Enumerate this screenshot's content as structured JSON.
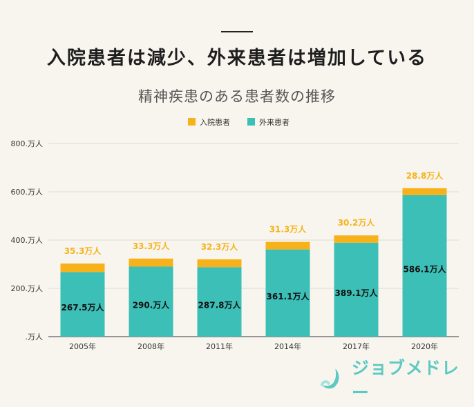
{
  "headline": "入院患者は減少、外来患者は増加している",
  "brand": {
    "name": "ジョブメドレー",
    "color": "#5cc9c2"
  },
  "chart_data": {
    "type": "bar",
    "stacked": true,
    "title": "精神疾患のある患者数の推移",
    "categories": [
      "2005年",
      "2008年",
      "2011年",
      "2014年",
      "2017年",
      "2020年"
    ],
    "series": [
      {
        "name": "外来患者",
        "color": "#3bbfb6",
        "values": [
          267.5,
          290.0,
          287.8,
          361.1,
          389.1,
          586.1
        ],
        "labels": [
          "267.5万人",
          "290.万人",
          "287.8万人",
          "361.1万人",
          "389.1万人",
          "586.1万人"
        ]
      },
      {
        "name": "入院患者",
        "color": "#f7b21b",
        "values": [
          35.3,
          33.3,
          32.3,
          31.3,
          30.2,
          28.8
        ],
        "labels": [
          "35.3万人",
          "33.3万人",
          "32.3万人",
          "31.3万人",
          "30.2万人",
          "28.8万人"
        ]
      }
    ],
    "legend": [
      {
        "name": "入院患者",
        "color": "#f7b21b"
      },
      {
        "name": "外来患者",
        "color": "#3bbfb6"
      }
    ],
    "y_ticks": [
      0,
      200,
      400,
      600,
      800
    ],
    "y_tick_labels": [
      ".万人",
      "200.万人",
      "400.万人",
      "600.万人",
      "800.万人"
    ],
    "ylim": [
      0,
      800
    ],
    "grid": true,
    "legend_position": "top-center"
  }
}
